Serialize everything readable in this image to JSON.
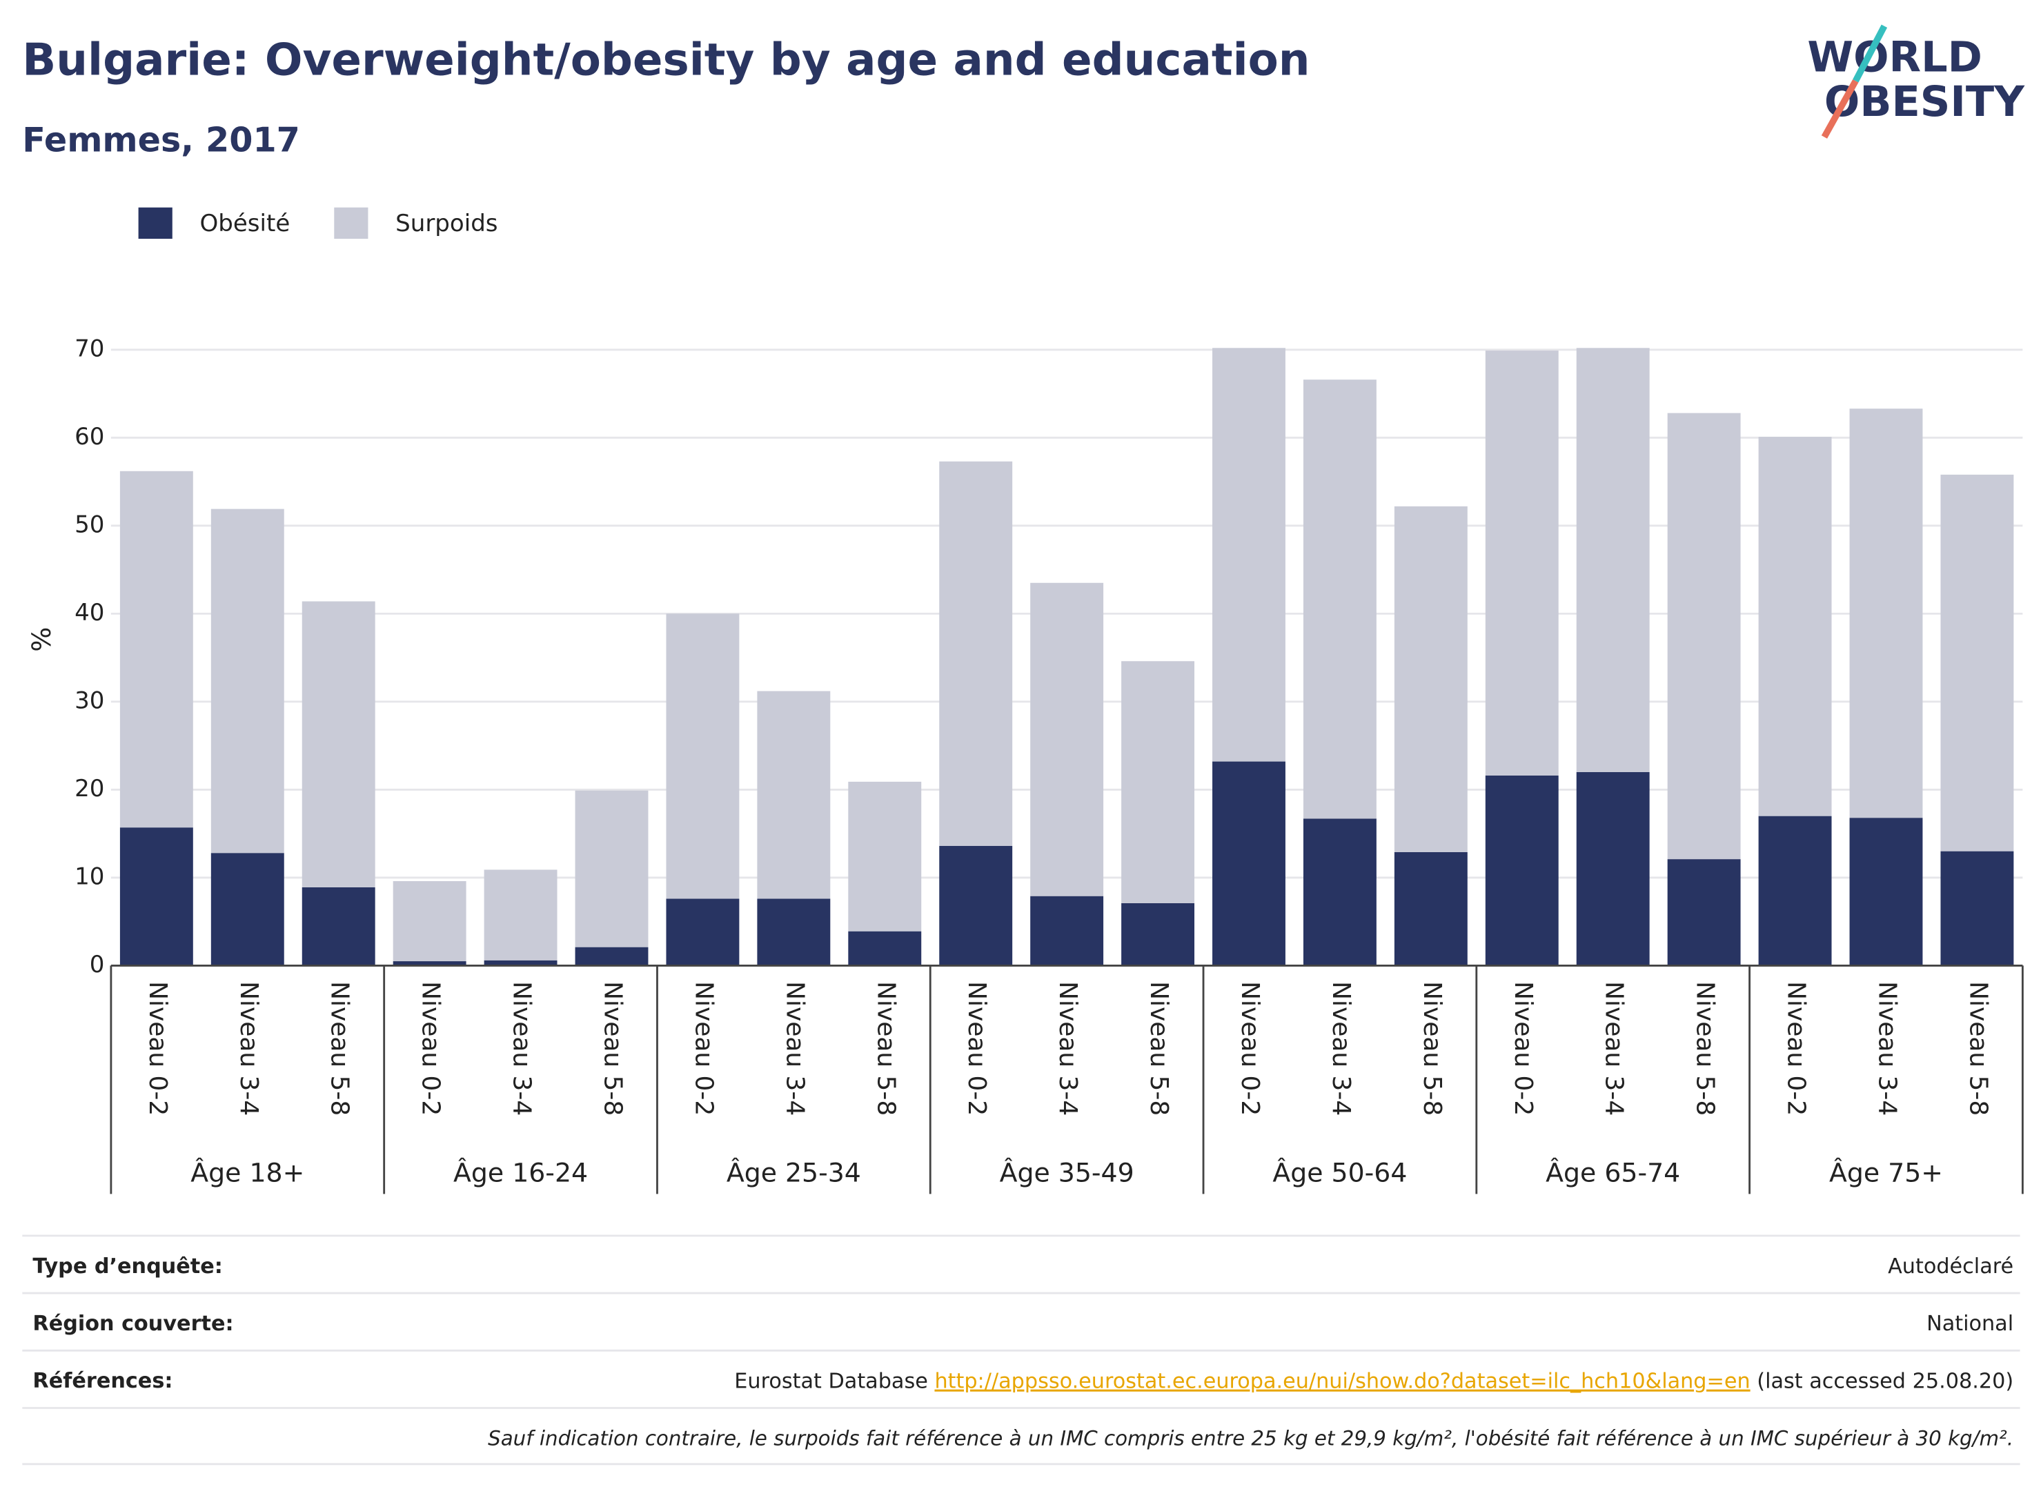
{
  "logo": {
    "line1": "WORLD",
    "line2": "OBESITY"
  },
  "chart_data": {
    "type": "stacked-bar",
    "title": "Bulgarie: Overweight/obesity by age and education",
    "subtitle": "Femmes, 2017",
    "y_label": "%",
    "categories": [
      "Niveau 0-2",
      "Niveau 3-4",
      "Niveau 5-8",
      "Niveau 0-2",
      "Niveau 3-4",
      "Niveau 5-8",
      "Niveau 0-2",
      "Niveau 3-4",
      "Niveau 5-8",
      "Niveau 0-2",
      "Niveau 3-4",
      "Niveau 5-8",
      "Niveau 0-2",
      "Niveau 3-4",
      "Niveau 5-8",
      "Niveau 0-2",
      "Niveau 3-4",
      "Niveau 5-8",
      "Niveau 0-2",
      "Niveau 3-4",
      "Niveau 5-8"
    ],
    "groups": [
      "Âge 18+",
      "Âge 16-24",
      "Âge 25-34",
      "Âge 35-49",
      "Âge 50-64",
      "Âge 65-74",
      "Âge 75+"
    ],
    "series": [
      {
        "name": "Obésité",
        "color": "#283462",
        "values": [
          15.7,
          12.8,
          8.9,
          0.5,
          0.6,
          2.1,
          7.6,
          7.6,
          3.9,
          13.6,
          7.9,
          7.1,
          23.2,
          16.7,
          12.9,
          21.6,
          22.0,
          12.1,
          17.0,
          16.8,
          13.0
        ]
      },
      {
        "name": "Surpoids",
        "color": "#c9cbd7",
        "values": [
          40.5,
          39.1,
          32.5,
          9.1,
          10.3,
          17.8,
          32.4,
          23.6,
          17.0,
          43.7,
          35.6,
          27.5,
          47.0,
          49.9,
          39.3,
          48.3,
          48.2,
          50.7,
          43.1,
          46.5,
          42.8
        ]
      }
    ],
    "ylim": [
      0,
      71
    ],
    "yticks": [
      0,
      10,
      20,
      30,
      40,
      50,
      60,
      70
    ],
    "grid": true,
    "legend": "top-left"
  },
  "footer": {
    "rows": [
      [
        "Type d’enquête:",
        "Autodéclaré"
      ],
      [
        "Région couverte:",
        "National"
      ],
      [
        "Références:",
        "Eurostat Database",
        "http://appsso.eurostat.ec.europa.eu/nui/show.do?dataset=ilc_hch10&lang=en",
        "(last accessed 25.08.20)"
      ]
    ],
    "note": "Sauf indication contraire, le surpoids fait référence à un IMC compris entre 25 kg et 29,9 kg/m², l'obésité fait référence à un IMC supérieur à 30 kg/m²."
  }
}
